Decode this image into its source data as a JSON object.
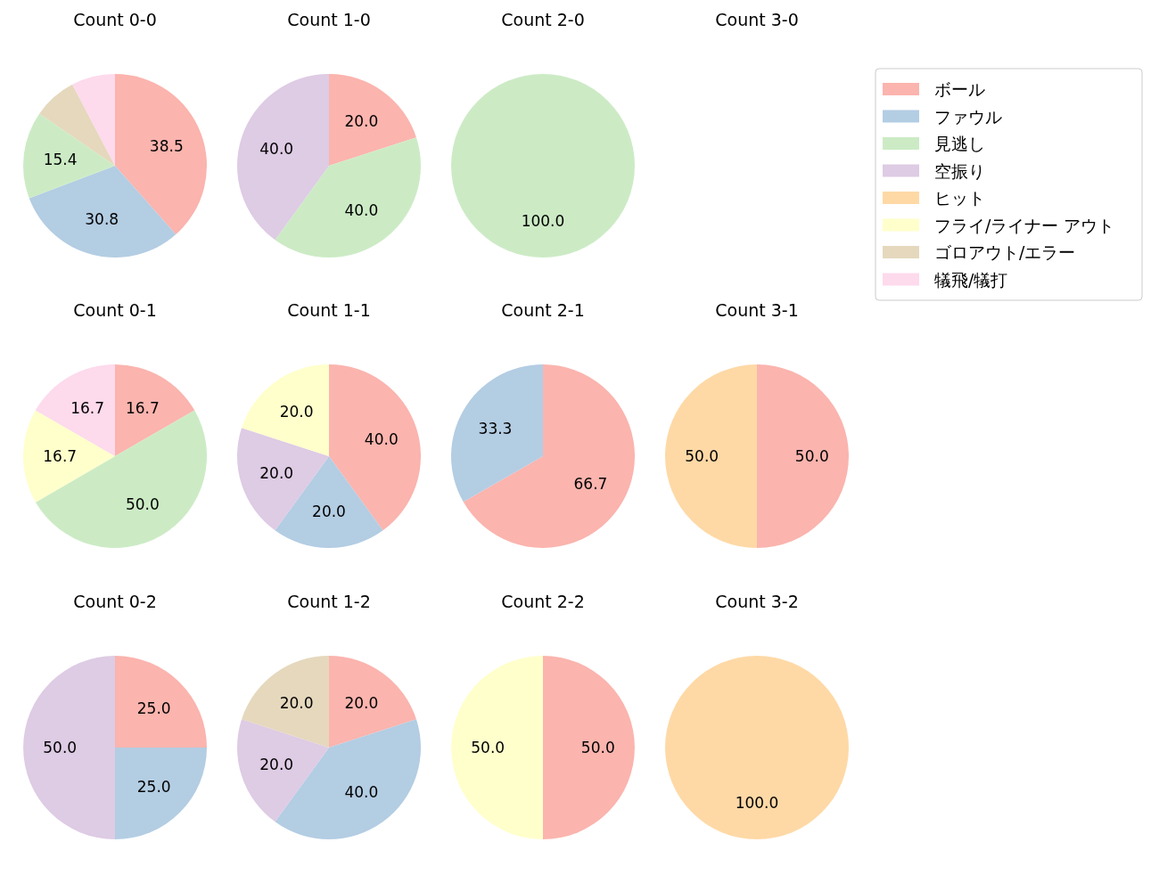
{
  "chart_data": [
    {
      "type": "pie",
      "title": "Count 0-0",
      "categories": [
        "ボール",
        "ファウル",
        "見逃し",
        "空振り",
        "ヒット",
        "フライ/ライナー アウト",
        "ゴロアウト/エラー",
        "犠飛/犠打"
      ],
      "values": [
        38.5,
        30.8,
        15.4,
        null,
        null,
        null,
        7.7,
        7.7
      ],
      "value_labels": [
        "38.5",
        "30.8",
        "15.4",
        null,
        null,
        null,
        null,
        null
      ],
      "colors": [
        "#fbb4ae",
        "#b3cde3",
        "#ccebc5",
        "#decbe4",
        "#fed9a6",
        "#ffffcc",
        "#e5d8bd",
        "#fddaec"
      ],
      "legend": "right"
    },
    {
      "type": "pie",
      "title": "Count 1-0",
      "categories": [
        null,
        null,
        null
      ],
      "values": [
        20.0,
        40.0,
        40.0
      ],
      "value_labels": [
        "20.0",
        "40.0",
        "40.0"
      ],
      "colors": [
        "#fbb4ae",
        "#ccebc5",
        "#decbe4"
      ]
    },
    {
      "type": "pie",
      "title": "Count 2-0",
      "categories": [
        null
      ],
      "values": [
        100.0
      ],
      "value_labels": [
        "100.0"
      ],
      "colors": [
        "#ccebc5"
      ]
    },
    {
      "type": "other",
      "title": "Count 3-0"
    },
    {
      "type": "pie",
      "title": "Count 0-1",
      "categories": [
        null,
        null,
        null,
        null
      ],
      "values": [
        16.7,
        50.0,
        16.7,
        16.7
      ],
      "value_labels": [
        "16.7",
        "50.0",
        "16.7",
        "16.7"
      ],
      "colors": [
        "#fbb4ae",
        "#ccebc5",
        "#ffffcc",
        "#fddaec"
      ]
    },
    {
      "type": "pie",
      "title": "Count 1-1",
      "categories": [
        null,
        null,
        null,
        null
      ],
      "values": [
        40.0,
        20.0,
        20.0,
        20.0
      ],
      "value_labels": [
        "40.0",
        "20.0",
        "20.0",
        "20.0"
      ],
      "colors": [
        "#fbb4ae",
        "#b3cde3",
        "#decbe4",
        "#ffffcc"
      ]
    },
    {
      "type": "pie",
      "title": "Count 2-1",
      "categories": [
        null,
        null
      ],
      "values": [
        66.7,
        33.3
      ],
      "value_labels": [
        "66.7",
        "33.3"
      ],
      "colors": [
        "#fbb4ae",
        "#b3cde3"
      ]
    },
    {
      "type": "pie",
      "title": "Count 3-1",
      "categories": [
        null,
        null
      ],
      "values": [
        50.0,
        50.0
      ],
      "value_labels": [
        "50.0",
        "50.0"
      ],
      "colors": [
        "#fbb4ae",
        "#fed9a6"
      ]
    },
    {
      "type": "pie",
      "title": "Count 0-2",
      "categories": [
        null,
        null,
        null
      ],
      "values": [
        25.0,
        25.0,
        50.0
      ],
      "value_labels": [
        "25.0",
        "25.0",
        "50.0"
      ],
      "colors": [
        "#fbb4ae",
        "#b3cde3",
        "#decbe4"
      ]
    },
    {
      "type": "pie",
      "title": "Count 1-2",
      "categories": [
        null,
        null,
        null,
        null
      ],
      "values": [
        20.0,
        40.0,
        20.0,
        20.0
      ],
      "value_labels": [
        "20.0",
        "40.0",
        "20.0",
        "20.0"
      ],
      "colors": [
        "#fbb4ae",
        "#b3cde3",
        "#decbe4",
        "#e5d8bd"
      ]
    },
    {
      "type": "pie",
      "title": "Count 2-2",
      "categories": [
        null,
        null
      ],
      "values": [
        50.0,
        50.0
      ],
      "value_labels": [
        "50.0",
        "50.0"
      ],
      "colors": [
        "#fbb4ae",
        "#ffffcc"
      ]
    },
    {
      "type": "pie",
      "title": "Count 3-2",
      "categories": [
        null
      ],
      "values": [
        100.0
      ],
      "value_labels": [
        "100.0"
      ],
      "colors": [
        "#fed9a6"
      ]
    }
  ]
}
